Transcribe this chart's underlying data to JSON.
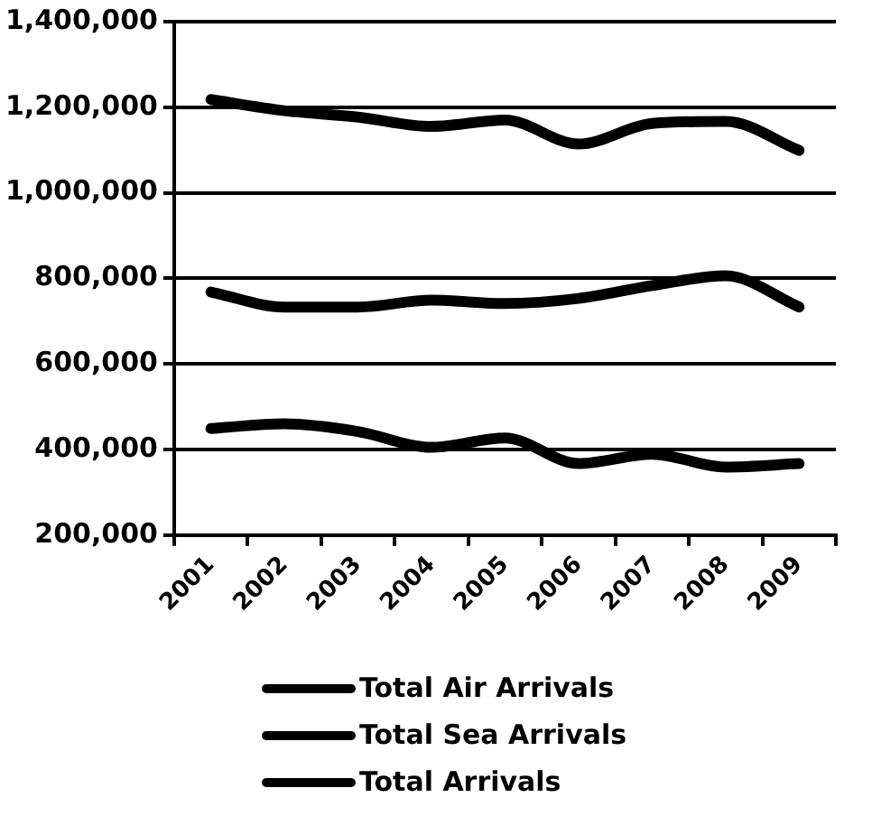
{
  "chart_data": {
    "type": "line",
    "categories": [
      "2001",
      "2002",
      "2003",
      "2004",
      "2005",
      "2006",
      "2007",
      "2008",
      "2009"
    ],
    "series": [
      {
        "name": "Total Air Arrivals",
        "color": "#000000",
        "values": [
          768000,
          733000,
          733000,
          749000,
          741000,
          753000,
          783000,
          806000,
          733000
        ]
      },
      {
        "name": "Total Sea Arrivals",
        "color": "#000000",
        "values": [
          449000,
          460000,
          442000,
          405000,
          427000,
          367000,
          389000,
          359000,
          367000
        ]
      },
      {
        "name": "Total Arrivals",
        "color": "#000000",
        "values": [
          1218000,
          1192000,
          1177000,
          1155000,
          1170000,
          1114000,
          1162000,
          1167000,
          1099000
        ]
      }
    ],
    "ylim": [
      200000,
      1400000
    ],
    "yticks": [
      {
        "value": 200000,
        "label": "200,000"
      },
      {
        "value": 400000,
        "label": "400,000"
      },
      {
        "value": 600000,
        "label": "600,000"
      },
      {
        "value": 800000,
        "label": "800,000"
      },
      {
        "value": 1000000,
        "label": "1,000,000"
      },
      {
        "value": 1200000,
        "label": "1,200,000"
      },
      {
        "value": 1400000,
        "label": "1,400,000"
      }
    ],
    "grid": "y",
    "legend": "bottom",
    "marker": "none",
    "line_style": "solid"
  }
}
